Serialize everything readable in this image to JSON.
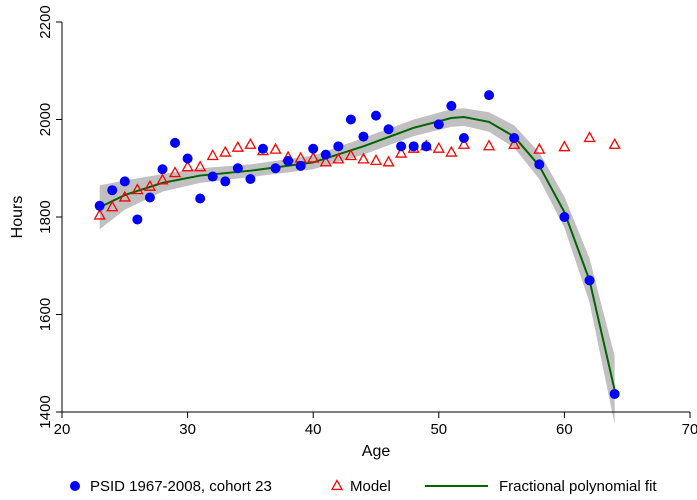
{
  "chart_data": {
    "type": "scatter",
    "xlabel": "Age",
    "ylabel": "Hours",
    "xlim": [
      20,
      70
    ],
    "ylim": [
      1400,
      2200
    ],
    "xticks": [
      20,
      30,
      40,
      50,
      60,
      70
    ],
    "yticks": [
      1400,
      1600,
      1800,
      2000,
      2200
    ],
    "grid": false,
    "legend_position": "bottom",
    "series": [
      {
        "name": "PSID 1967-2008, cohort 23",
        "kind": "scatter",
        "marker": "filled-circle",
        "color": "#0000ff",
        "points": [
          [
            23,
            1823
          ],
          [
            24,
            1855
          ],
          [
            25,
            1873
          ],
          [
            26,
            1795
          ],
          [
            27,
            1840
          ],
          [
            28,
            1898
          ],
          [
            29,
            1952
          ],
          [
            30,
            1920
          ],
          [
            31,
            1838
          ],
          [
            32,
            1883
          ],
          [
            33,
            1873
          ],
          [
            34,
            1900
          ],
          [
            35,
            1878
          ],
          [
            36,
            1940
          ],
          [
            37,
            1900
          ],
          [
            38,
            1915
          ],
          [
            39,
            1905
          ],
          [
            40,
            1940
          ],
          [
            41,
            1928
          ],
          [
            42,
            1945
          ],
          [
            43,
            2000
          ],
          [
            44,
            1965
          ],
          [
            45,
            2008
          ],
          [
            46,
            1980
          ],
          [
            47,
            1945
          ],
          [
            48,
            1945
          ],
          [
            49,
            1945
          ],
          [
            50,
            1990
          ],
          [
            51,
            2028
          ],
          [
            52,
            1962
          ],
          [
            54,
            2050
          ],
          [
            56,
            1962
          ],
          [
            58,
            1908
          ],
          [
            60,
            1800
          ],
          [
            62,
            1670
          ],
          [
            64,
            1437
          ]
        ]
      },
      {
        "name": "Model",
        "kind": "scatter",
        "marker": "hollow-triangle",
        "color": "#ff0000",
        "points": [
          [
            23,
            1803
          ],
          [
            24,
            1820
          ],
          [
            25,
            1840
          ],
          [
            26,
            1855
          ],
          [
            27,
            1862
          ],
          [
            28,
            1875
          ],
          [
            29,
            1890
          ],
          [
            30,
            1902
          ],
          [
            31,
            1902
          ],
          [
            32,
            1925
          ],
          [
            33,
            1932
          ],
          [
            34,
            1942
          ],
          [
            35,
            1948
          ],
          [
            36,
            1935
          ],
          [
            37,
            1938
          ],
          [
            38,
            1922
          ],
          [
            39,
            1920
          ],
          [
            40,
            1920
          ],
          [
            41,
            1912
          ],
          [
            42,
            1918
          ],
          [
            43,
            1925
          ],
          [
            44,
            1918
          ],
          [
            45,
            1915
          ],
          [
            46,
            1912
          ],
          [
            47,
            1930
          ],
          [
            48,
            1940
          ],
          [
            49,
            1945
          ],
          [
            50,
            1940
          ],
          [
            51,
            1932
          ],
          [
            52,
            1948
          ],
          [
            54,
            1945
          ],
          [
            56,
            1948
          ],
          [
            58,
            1938
          ],
          [
            60,
            1943
          ],
          [
            62,
            1962
          ],
          [
            64,
            1948
          ]
        ]
      },
      {
        "name": "Fractional polynomial fit",
        "kind": "line",
        "color": "#006400",
        "band_color": "#c0c0c0",
        "points": [
          [
            23,
            1820
          ],
          [
            25,
            1845
          ],
          [
            28,
            1870
          ],
          [
            31,
            1885
          ],
          [
            35,
            1895
          ],
          [
            40,
            1912
          ],
          [
            44,
            1945
          ],
          [
            48,
            1983
          ],
          [
            51,
            2003
          ],
          [
            52,
            2005
          ],
          [
            54,
            1995
          ],
          [
            56,
            1965
          ],
          [
            58,
            1905
          ],
          [
            60,
            1810
          ],
          [
            62,
            1670
          ],
          [
            64,
            1445
          ]
        ],
        "band": [
          [
            23,
            1775,
            1865
          ],
          [
            25,
            1815,
            1875
          ],
          [
            28,
            1852,
            1888
          ],
          [
            31,
            1870,
            1900
          ],
          [
            35,
            1882,
            1908
          ],
          [
            40,
            1898,
            1926
          ],
          [
            44,
            1928,
            1962
          ],
          [
            48,
            1966,
            2000
          ],
          [
            51,
            1985,
            2021
          ],
          [
            52,
            1987,
            2023
          ],
          [
            54,
            1975,
            2015
          ],
          [
            56,
            1942,
            1988
          ],
          [
            58,
            1878,
            1932
          ],
          [
            60,
            1778,
            1842
          ],
          [
            62,
            1625,
            1715
          ],
          [
            64,
            1375,
            1515
          ]
        ]
      }
    ]
  }
}
